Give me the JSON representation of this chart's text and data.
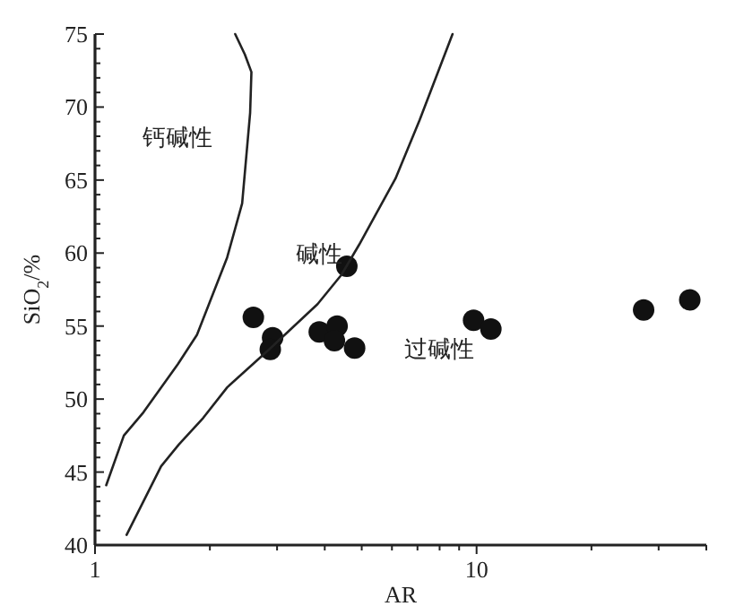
{
  "chart_data": {
    "type": "scatter",
    "xlabel": "AR",
    "ylabel": "SiO$_{2}$/%",
    "log": "x",
    "grid": false,
    "xlim": [
      1,
      40
    ],
    "xticks": [
      1,
      {
        "value": 2,
        "label": null
      },
      {
        "value": 3,
        "label": null
      },
      {
        "value": 4,
        "label": null
      },
      {
        "value": 5,
        "label": null
      },
      {
        "value": 6,
        "label": null
      },
      {
        "value": 7,
        "label": null
      },
      {
        "value": 8,
        "label": null
      },
      {
        "value": 9,
        "label": null
      },
      10,
      {
        "value": 20,
        "label": null
      },
      {
        "value": 30,
        "label": null
      },
      {
        "value": 40,
        "label": null
      }
    ],
    "ylim": [
      40,
      75
    ],
    "yticks": [
      40,
      {
        "value": 41,
        "label": null
      },
      {
        "value": 42,
        "label": null
      },
      {
        "value": 43,
        "label": null
      },
      {
        "value": 44,
        "label": null
      },
      45,
      {
        "value": 46,
        "label": null
      },
      {
        "value": 47,
        "label": null
      },
      {
        "value": 48,
        "label": null
      },
      {
        "value": 49,
        "label": null
      },
      50,
      {
        "value": 51,
        "label": null
      },
      {
        "value": 52,
        "label": null
      },
      {
        "value": 53,
        "label": null
      },
      {
        "value": 54,
        "label": null
      },
      55,
      {
        "value": 56,
        "label": null
      },
      {
        "value": 57,
        "label": null
      },
      {
        "value": 58,
        "label": null
      },
      {
        "value": 59,
        "label": null
      },
      60,
      {
        "value": 61,
        "label": null
      },
      {
        "value": 62,
        "label": null
      },
      {
        "value": 63,
        "label": null
      },
      {
        "value": 64,
        "label": null
      },
      65,
      {
        "value": 66,
        "label": null
      },
      {
        "value": 67,
        "label": null
      },
      {
        "value": 68,
        "label": null
      },
      {
        "value": 69,
        "label": null
      },
      70,
      {
        "value": 71,
        "label": null
      },
      {
        "value": 72,
        "label": null
      },
      {
        "value": 73,
        "label": null
      },
      {
        "value": 74,
        "label": null
      },
      75
    ],
    "series": [
      {
        "marker": "circle",
        "color": "#111111",
        "x": [
          2.6,
          2.92,
          2.88,
          3.87,
          4.31,
          4.24,
          4.79,
          4.57,
          9.82,
          10.9,
          27.4,
          36.2
        ],
        "values": [
          55.6,
          54.2,
          53.4,
          54.6,
          55.0,
          54.0,
          53.5,
          59.1,
          55.4,
          54.8,
          56.1,
          56.8
        ]
      },
      {
        "type": "line",
        "marker": "none",
        "line_style": "solid",
        "color": "#222222",
        "x": [
          1.07,
          1.19,
          1.34,
          1.65,
          1.85,
          2.22,
          2.43,
          2.55,
          2.57,
          2.47,
          2.33
        ],
        "values": [
          44.1,
          47.5,
          49.1,
          52.4,
          54.4,
          59.7,
          63.4,
          69.6,
          72.4,
          73.6,
          75.0
        ]
      },
      {
        "type": "line",
        "marker": "none",
        "line_style": "solid",
        "color": "#222222",
        "x": [
          1.21,
          1.49,
          1.66,
          1.92,
          2.22,
          2.86,
          3.83,
          4.42,
          4.93,
          6.13,
          7.09,
          8.65
        ],
        "values": [
          40.7,
          45.4,
          46.9,
          48.7,
          50.8,
          53.4,
          56.5,
          58.5,
          60.6,
          65.1,
          69.1,
          75.0
        ]
      }
    ],
    "annotations": [
      "钙碱性",
      "碱性",
      "过碱性"
    ]
  }
}
